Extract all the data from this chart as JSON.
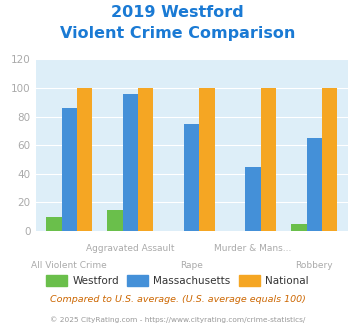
{
  "title_line1": "2019 Westford",
  "title_line2": "Violent Crime Comparison",
  "categories": [
    "All Violent Crime",
    "Aggravated Assault",
    "Rape",
    "Murder & Mans...",
    "Robbery"
  ],
  "series": {
    "Westford": [
      10,
      15,
      0,
      0,
      5
    ],
    "Massachusetts": [
      86,
      96,
      75,
      45,
      65
    ],
    "National": [
      100,
      100,
      100,
      100,
      100
    ]
  },
  "colors": {
    "Westford": "#6abf4b",
    "Massachusetts": "#4490d8",
    "National": "#f5a623"
  },
  "ylim": [
    0,
    120
  ],
  "yticks": [
    0,
    20,
    40,
    60,
    80,
    100,
    120
  ],
  "bar_width": 0.25,
  "title_color": "#1a7ad4",
  "title_fontsize": 11.5,
  "axes_bg": "#ddeef8",
  "fig_bg": "#ffffff",
  "footnote1": "Compared to U.S. average. (U.S. average equals 100)",
  "footnote2": "© 2025 CityRating.com - https://www.cityrating.com/crime-statistics/",
  "footnote1_color": "#cc6600",
  "footnote2_color": "#999999",
  "xlabel_color": "#aaaaaa",
  "tick_color": "#aaaaaa",
  "grid_color": "#ffffff",
  "cat_labels_top": [
    "",
    "Aggravated Assault",
    "",
    "Murder & Mans...",
    ""
  ],
  "cat_labels_bottom": [
    "All Violent Crime",
    "",
    "Rape",
    "",
    "Robbery"
  ]
}
